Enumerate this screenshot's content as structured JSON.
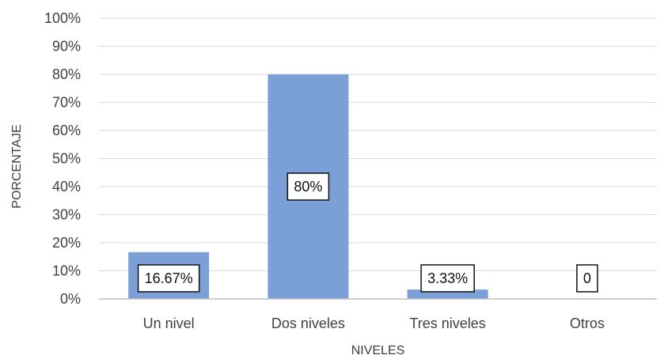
{
  "chart_data": {
    "type": "bar",
    "categories": [
      "Un nivel",
      "Dos niveles",
      "Tres niveles",
      "Otros"
    ],
    "values": [
      16.67,
      80,
      3.33,
      0
    ],
    "data_labels": [
      "16.67%",
      "80%",
      "3.33%",
      "0"
    ],
    "xlabel": "NIVELES",
    "ylabel": "PORCENTAJE",
    "ylim": [
      0,
      100
    ],
    "y_ticks": [
      0,
      10,
      20,
      30,
      40,
      50,
      60,
      70,
      80,
      90,
      100
    ],
    "y_tick_labels": [
      "0%",
      "10%",
      "20%",
      "30%",
      "40%",
      "50%",
      "60%",
      "70%",
      "80%",
      "90%",
      "100%"
    ],
    "grid": true,
    "legend": "none",
    "colors": {
      "bar": "#7ba0d8",
      "grid": "#d9d9d9",
      "axis": "#bfbfbf",
      "text": "#404040"
    }
  }
}
